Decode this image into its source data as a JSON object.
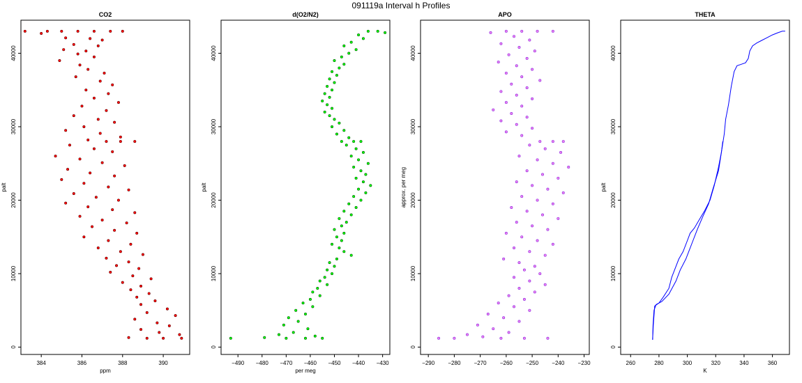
{
  "figure_title": "091119a   Interval h Profiles",
  "chart_data": [
    {
      "type": "scatter",
      "title": "CO2",
      "xlabel": "ppm",
      "ylabel": "palt",
      "xlim": [
        383,
        391.3
      ],
      "ylim": [
        -1000,
        44500
      ],
      "xticks": [
        384,
        386,
        388,
        390
      ],
      "yticks": [
        0,
        10000,
        20000,
        30000,
        40000
      ],
      "point_style": "open-circle",
      "point_color": "#ff0000",
      "edge_color": "#600000",
      "points": [
        [
          384.3,
          43000
        ],
        [
          385.0,
          43000
        ],
        [
          385.8,
          43000
        ],
        [
          386.6,
          43000
        ],
        [
          387.4,
          43000
        ],
        [
          388.0,
          43000
        ],
        [
          384.0,
          42700
        ],
        [
          383.2,
          43000
        ],
        [
          385.2,
          42100
        ],
        [
          386.4,
          42000
        ],
        [
          387.0,
          41800
        ],
        [
          385.6,
          41200
        ],
        [
          386.8,
          41000
        ],
        [
          385.1,
          40500
        ],
        [
          386.2,
          40300
        ],
        [
          385.8,
          39900
        ],
        [
          386.6,
          39500
        ],
        [
          384.9,
          39000
        ],
        [
          385.9,
          38400
        ],
        [
          386.3,
          37800
        ],
        [
          387.1,
          37300
        ],
        [
          385.7,
          36800
        ],
        [
          386.9,
          36200
        ],
        [
          387.5,
          35700
        ],
        [
          386.2,
          35000
        ],
        [
          387.3,
          34500
        ],
        [
          386.6,
          33900
        ],
        [
          387.8,
          33300
        ],
        [
          386.0,
          32800
        ],
        [
          387.2,
          32200
        ],
        [
          385.6,
          31500
        ],
        [
          386.8,
          31000
        ],
        [
          387.6,
          30600
        ],
        [
          386.1,
          30000
        ],
        [
          385.2,
          29500
        ],
        [
          386.9,
          29100
        ],
        [
          387.9,
          28600
        ],
        [
          386.3,
          28200
        ],
        [
          387.2,
          28000
        ],
        [
          387.9,
          28000
        ],
        [
          388.6,
          28000
        ],
        [
          385.4,
          27500
        ],
        [
          386.6,
          27000
        ],
        [
          387.5,
          26600
        ],
        [
          384.7,
          26000
        ],
        [
          385.9,
          25600
        ],
        [
          387.0,
          25100
        ],
        [
          388.1,
          24700
        ],
        [
          385.3,
          24200
        ],
        [
          386.4,
          23700
        ],
        [
          387.6,
          23300
        ],
        [
          385.0,
          22800
        ],
        [
          386.1,
          22300
        ],
        [
          387.3,
          21800
        ],
        [
          388.3,
          21400
        ],
        [
          385.6,
          20900
        ],
        [
          386.7,
          20400
        ],
        [
          387.8,
          20000
        ],
        [
          385.2,
          19600
        ],
        [
          386.3,
          19100
        ],
        [
          387.5,
          18700
        ],
        [
          388.6,
          18300
        ],
        [
          385.9,
          17800
        ],
        [
          387.0,
          17300
        ],
        [
          388.2,
          16900
        ],
        [
          386.5,
          16400
        ],
        [
          387.6,
          15900
        ],
        [
          388.7,
          15500
        ],
        [
          386.1,
          15000
        ],
        [
          387.3,
          14500
        ],
        [
          388.4,
          14000
        ],
        [
          386.8,
          13500
        ],
        [
          387.9,
          13000
        ],
        [
          389.0,
          12600
        ],
        [
          387.2,
          12100
        ],
        [
          388.3,
          11600
        ],
        [
          387.7,
          11100
        ],
        [
          388.8,
          10700
        ],
        [
          387.4,
          10200
        ],
        [
          388.5,
          9700
        ],
        [
          389.4,
          9300
        ],
        [
          388.0,
          8800
        ],
        [
          388.9,
          8300
        ],
        [
          388.4,
          7800
        ],
        [
          389.3,
          7300
        ],
        [
          388.7,
          6800
        ],
        [
          389.6,
          6300
        ],
        [
          388.9,
          5800
        ],
        [
          390.2,
          5200
        ],
        [
          389.2,
          4700
        ],
        [
          390.6,
          4300
        ],
        [
          388.6,
          3800
        ],
        [
          389.7,
          3300
        ],
        [
          390.3,
          2900
        ],
        [
          388.9,
          2400
        ],
        [
          389.8,
          2000
        ],
        [
          390.8,
          1700
        ],
        [
          388.3,
          1300
        ],
        [
          389.2,
          1200
        ],
        [
          390.0,
          1200
        ],
        [
          390.9,
          1200
        ]
      ]
    },
    {
      "type": "scatter",
      "title": "d(O2/N2)",
      "xlabel": "per meg",
      "ylabel": "palt",
      "xlim": [
        -497,
        -427
      ],
      "ylim": [
        -1000,
        44500
      ],
      "xticks": [
        -490,
        -480,
        -470,
        -460,
        -450,
        -440,
        -430
      ],
      "yticks": [
        0,
        10000,
        20000,
        30000,
        40000
      ],
      "point_style": "open-circle",
      "point_color": "#00ff00",
      "edge_color": "#005a00",
      "points": [
        [
          -436,
          43000
        ],
        [
          -432,
          43000
        ],
        [
          -429,
          42800
        ],
        [
          -440,
          42500
        ],
        [
          -438,
          42000
        ],
        [
          -443,
          41500
        ],
        [
          -446,
          41000
        ],
        [
          -441,
          40500
        ],
        [
          -444,
          40000
        ],
        [
          -447,
          39500
        ],
        [
          -450,
          39000
        ],
        [
          -446,
          38500
        ],
        [
          -448,
          38000
        ],
        [
          -451,
          37500
        ],
        [
          -449,
          37000
        ],
        [
          -452,
          36500
        ],
        [
          -450,
          36000
        ],
        [
          -453,
          35500
        ],
        [
          -451,
          35000
        ],
        [
          -454,
          34500
        ],
        [
          -452,
          34000
        ],
        [
          -455,
          33500
        ],
        [
          -453,
          33000
        ],
        [
          -451,
          32500
        ],
        [
          -454,
          32000
        ],
        [
          -452,
          31500
        ],
        [
          -450,
          31000
        ],
        [
          -448,
          30500
        ],
        [
          -451,
          30000
        ],
        [
          -446,
          29500
        ],
        [
          -449,
          29000
        ],
        [
          -444,
          28500
        ],
        [
          -447,
          28000
        ],
        [
          -442,
          28000
        ],
        [
          -439,
          28000
        ],
        [
          -445,
          27500
        ],
        [
          -441,
          27000
        ],
        [
          -438,
          26500
        ],
        [
          -443,
          26000
        ],
        [
          -440,
          25500
        ],
        [
          -436,
          25000
        ],
        [
          -442,
          24500
        ],
        [
          -439,
          24000
        ],
        [
          -437,
          23500
        ],
        [
          -441,
          23000
        ],
        [
          -438,
          22500
        ],
        [
          -435,
          22000
        ],
        [
          -440,
          21500
        ],
        [
          -437,
          21000
        ],
        [
          -442,
          20500
        ],
        [
          -439,
          20000
        ],
        [
          -444,
          19500
        ],
        [
          -441,
          19000
        ],
        [
          -446,
          18500
        ],
        [
          -443,
          18000
        ],
        [
          -448,
          17500
        ],
        [
          -445,
          17000
        ],
        [
          -447,
          16500
        ],
        [
          -450,
          16000
        ],
        [
          -446,
          15500
        ],
        [
          -449,
          15000
        ],
        [
          -447,
          14500
        ],
        [
          -451,
          14000
        ],
        [
          -448,
          13500
        ],
        [
          -446,
          13000
        ],
        [
          -443,
          12500
        ],
        [
          -449,
          12000
        ],
        [
          -452,
          11500
        ],
        [
          -450,
          11000
        ],
        [
          -453,
          10500
        ],
        [
          -451,
          10000
        ],
        [
          -454,
          9500
        ],
        [
          -456,
          9000
        ],
        [
          -453,
          8500
        ],
        [
          -457,
          8000
        ],
        [
          -459,
          7500
        ],
        [
          -456,
          7000
        ],
        [
          -460,
          6500
        ],
        [
          -463,
          6000
        ],
        [
          -459,
          5500
        ],
        [
          -466,
          5000
        ],
        [
          -462,
          4500
        ],
        [
          -469,
          4000
        ],
        [
          -465,
          3500
        ],
        [
          -471,
          3000
        ],
        [
          -461,
          2500
        ],
        [
          -467,
          2000
        ],
        [
          -473,
          1700
        ],
        [
          -458,
          1500
        ],
        [
          -479,
          1300
        ],
        [
          -470,
          1200
        ],
        [
          -462,
          1200
        ],
        [
          -455,
          1200
        ],
        [
          -493,
          1200
        ]
      ]
    },
    {
      "type": "scatter",
      "title": "APO",
      "xlabel": "",
      "ylabel": "approx. per meg",
      "xlim": [
        -293,
        -228
      ],
      "ylim": [
        -1000,
        44500
      ],
      "xticks": [
        -290,
        -280,
        -270,
        -260,
        -250,
        -240,
        -230
      ],
      "yticks": [
        0,
        10000,
        20000,
        30000,
        40000
      ],
      "point_style": "open-circle",
      "point_color": "#ee82ee",
      "edge_color": "#8a2be2",
      "points": [
        [
          -260,
          43000
        ],
        [
          -254,
          43000
        ],
        [
          -248,
          43000
        ],
        [
          -242,
          43000
        ],
        [
          -266,
          42800
        ],
        [
          -257,
          42300
        ],
        [
          -251,
          41800
        ],
        [
          -262,
          41300
        ],
        [
          -255,
          40800
        ],
        [
          -249,
          40300
        ],
        [
          -259,
          39800
        ],
        [
          -252,
          39300
        ],
        [
          -263,
          38800
        ],
        [
          -256,
          38300
        ],
        [
          -250,
          37800
        ],
        [
          -260,
          37300
        ],
        [
          -254,
          36800
        ],
        [
          -247,
          36300
        ],
        [
          -258,
          35800
        ],
        [
          -252,
          35300
        ],
        [
          -262,
          34800
        ],
        [
          -256,
          34300
        ],
        [
          -250,
          33800
        ],
        [
          -260,
          33300
        ],
        [
          -254,
          32800
        ],
        [
          -265,
          32300
        ],
        [
          -258,
          31800
        ],
        [
          -252,
          31300
        ],
        [
          -262,
          30800
        ],
        [
          -256,
          30300
        ],
        [
          -250,
          29800
        ],
        [
          -260,
          29300
        ],
        [
          -254,
          28800
        ],
        [
          -247,
          28000
        ],
        [
          -242,
          28000
        ],
        [
          -238,
          28000
        ],
        [
          -251,
          27500
        ],
        [
          -245,
          27000
        ],
        [
          -239,
          26500
        ],
        [
          -255,
          26000
        ],
        [
          -248,
          25500
        ],
        [
          -242,
          25000
        ],
        [
          -236,
          24500
        ],
        [
          -252,
          24000
        ],
        [
          -246,
          23500
        ],
        [
          -240,
          23000
        ],
        [
          -256,
          22500
        ],
        [
          -250,
          22000
        ],
        [
          -244,
          21500
        ],
        [
          -238,
          21000
        ],
        [
          -254,
          20500
        ],
        [
          -248,
          20000
        ],
        [
          -242,
          19500
        ],
        [
          -258,
          19000
        ],
        [
          -252,
          18500
        ],
        [
          -246,
          18000
        ],
        [
          -240,
          17500
        ],
        [
          -256,
          17000
        ],
        [
          -250,
          16500
        ],
        [
          -244,
          16000
        ],
        [
          -260,
          15500
        ],
        [
          -254,
          15000
        ],
        [
          -248,
          14500
        ],
        [
          -242,
          14000
        ],
        [
          -257,
          13500
        ],
        [
          -251,
          13000
        ],
        [
          -245,
          12500
        ],
        [
          -261,
          12000
        ],
        [
          -255,
          11500
        ],
        [
          -249,
          11000
        ],
        [
          -253,
          10500
        ],
        [
          -247,
          10000
        ],
        [
          -257,
          9500
        ],
        [
          -251,
          9000
        ],
        [
          -245,
          8500
        ],
        [
          -255,
          8000
        ],
        [
          -249,
          7500
        ],
        [
          -259,
          7000
        ],
        [
          -253,
          6500
        ],
        [
          -263,
          6000
        ],
        [
          -257,
          5500
        ],
        [
          -251,
          5000
        ],
        [
          -267,
          4500
        ],
        [
          -261,
          4000
        ],
        [
          -255,
          3500
        ],
        [
          -271,
          3000
        ],
        [
          -265,
          2500
        ],
        [
          -259,
          2000
        ],
        [
          -275,
          1700
        ],
        [
          -269,
          1400
        ],
        [
          -262,
          1200
        ],
        [
          -253,
          1200
        ],
        [
          -244,
          1200
        ],
        [
          -286,
          1200
        ],
        [
          -280,
          1200
        ]
      ]
    },
    {
      "type": "line",
      "title": "THETA",
      "xlabel": "K",
      "ylabel": "palt",
      "xlim": [
        253,
        372
      ],
      "ylim": [
        -1000,
        44500
      ],
      "xticks": [
        260,
        280,
        300,
        320,
        340,
        360
      ],
      "yticks": [
        0,
        10000,
        20000,
        30000,
        40000
      ],
      "line_color": "#0000ff",
      "series": [
        {
          "x": [
            275.5,
            275.8,
            276.5,
            278,
            282,
            287,
            292,
            295,
            299,
            301,
            304,
            307,
            311,
            315,
            318,
            322,
            324,
            326,
            327,
            329,
            331,
            333,
            335,
            338,
            341,
            343,
            344,
            346,
            349,
            352,
            356,
            360,
            364,
            367,
            369
          ],
          "y": [
            1000,
            3000,
            5000,
            5800,
            6200,
            7200,
            9000,
            10500,
            12000,
            13000,
            14500,
            16000,
            17800,
            19500,
            21500,
            24000,
            26500,
            29000,
            31000,
            33000,
            35500,
            37500,
            38300,
            38500,
            38700,
            39300,
            40300,
            41000,
            41400,
            41700,
            42100,
            42500,
            42800,
            43000,
            43000
          ]
        },
        {
          "x": [
            275.5,
            276,
            277,
            280,
            283,
            287,
            289,
            292,
            294,
            297,
            300,
            302,
            305,
            308,
            312,
            316,
            319,
            322,
            324,
            325
          ],
          "y": [
            1000,
            3000,
            5600,
            6000,
            6800,
            8000,
            9500,
            11000,
            12000,
            13000,
            14500,
            15500,
            16200,
            17200,
            18500,
            20000,
            22000,
            24500,
            26500,
            28000
          ]
        }
      ]
    }
  ]
}
